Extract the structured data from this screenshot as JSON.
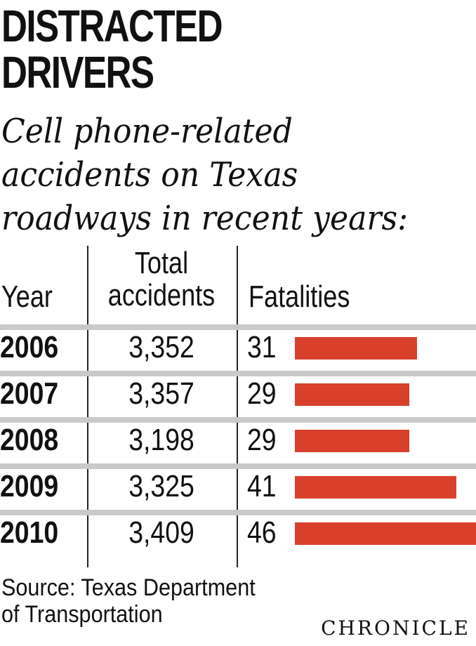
{
  "title": "DISTRACTED DRIVERS",
  "title_lines": [
    "DISTRACTED",
    "DRIVERS"
  ],
  "subtitle_lines": [
    "Cell phone-related",
    "accidents on Texas",
    "roadways in recent years:"
  ],
  "columns": {
    "year": "Year",
    "total_line1": "Total",
    "total_line2": "accidents",
    "fatalities": "Fatalities"
  },
  "chart_data": {
    "type": "table",
    "categories": [
      "2006",
      "2007",
      "2008",
      "2009",
      "2010"
    ],
    "series": [
      {
        "name": "Total accidents",
        "values": [
          3352,
          3357,
          3198,
          3325,
          3409
        ]
      },
      {
        "name": "Fatalities",
        "values": [
          31,
          29,
          29,
          41,
          46
        ]
      }
    ],
    "rows": [
      {
        "year": "2006",
        "total": "3,352",
        "fatalities": "31"
      },
      {
        "year": "2007",
        "total": "3,357",
        "fatalities": "29"
      },
      {
        "year": "2008",
        "total": "3,198",
        "fatalities": "29"
      },
      {
        "year": "2009",
        "total": "3,325",
        "fatalities": "41"
      },
      {
        "year": "2010",
        "total": "3,409",
        "fatalities": "46"
      }
    ],
    "fatalities_max": 46
  },
  "colors": {
    "bar": "#d9402b",
    "separator": "#c9c9c9"
  },
  "source_lines": [
    "Source: Texas Department",
    "of Transportation"
  ],
  "credit": "CHRONICLE"
}
